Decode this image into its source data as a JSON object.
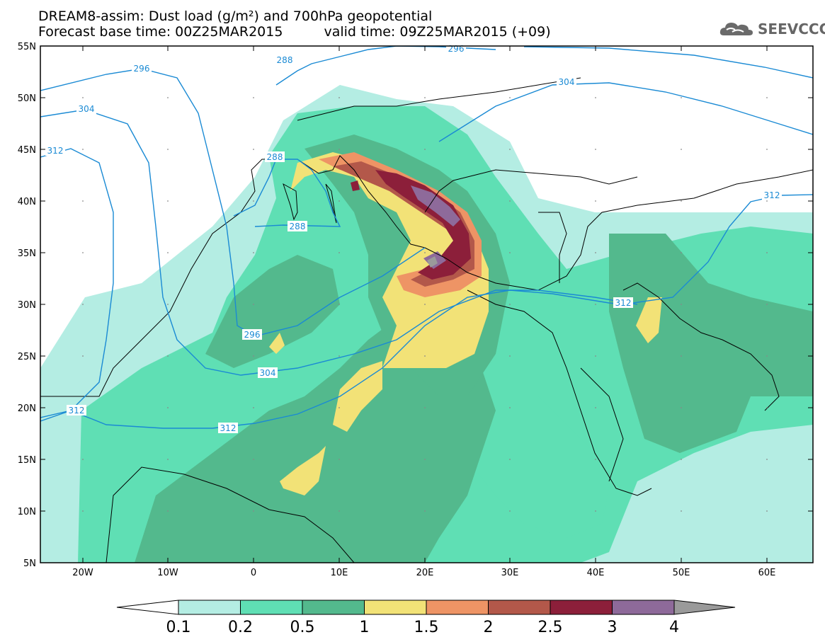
{
  "title": {
    "line1": "DREAM8-assim: Dust load (g/m²) and 700hPa geopotential",
    "base_time": "Forecast base time: 00Z25MAR2015",
    "valid_time": "valid time: 09Z25MAR2015 (+09)"
  },
  "logo": {
    "text": "SEEVCCC",
    "icon": "cloud-icon"
  },
  "colors": {
    "c1": "#b4ede3",
    "c2": "#5fdfb4",
    "c3": "#53b98d",
    "c4": "#f2e277",
    "c5": "#ee9465",
    "c6": "#b3584a",
    "c7": "#8c1f3a",
    "c8": "#8e6a9a",
    "c9": "#9a9a9a",
    "contour": "#1a8ad4"
  },
  "map": {
    "lon_ticks": [
      "20W",
      "10W",
      "0",
      "10E",
      "20E",
      "30E",
      "40E",
      "50E",
      "60E"
    ],
    "lat_ticks": [
      "55N",
      "50N",
      "45N",
      "40N",
      "35N",
      "30N",
      "25N",
      "20N",
      "15N",
      "10N",
      "5N"
    ],
    "contour_labels": [
      "296",
      "288",
      "296",
      "304",
      "304",
      "312",
      "288",
      "312",
      "288",
      "296",
      "304",
      "312",
      "312",
      "312"
    ]
  },
  "colorbar": {
    "labels": [
      "0.1",
      "0.2",
      "0.5",
      "1",
      "1.5",
      "2",
      "2.5",
      "3",
      "4"
    ]
  }
}
